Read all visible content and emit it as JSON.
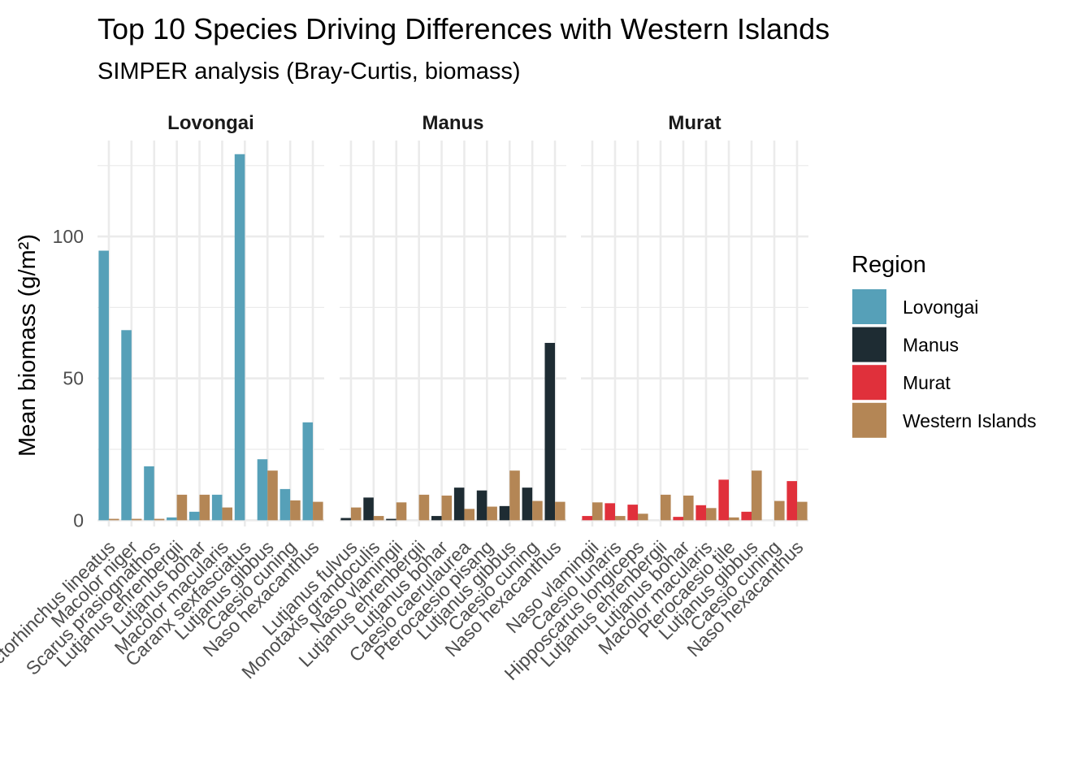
{
  "chart_data": {
    "type": "bar",
    "title": "Top 10 Species Driving Differences with Western Islands",
    "subtitle": "SIMPER analysis (Bray-Curtis, biomass)",
    "ylabel": "Mean biomass (g/m²)",
    "xlabel": "",
    "ylim": [
      0,
      130
    ],
    "yticks": [
      0,
      50,
      100
    ],
    "grid": true,
    "legend": {
      "title": "Region",
      "position": "right",
      "entries": [
        {
          "name": "Lovongai",
          "color": "#56A0B8"
        },
        {
          "name": "Manus",
          "color": "#1E2C33"
        },
        {
          "name": "Murat",
          "color": "#E0303B"
        },
        {
          "name": "Western Islands",
          "color": "#B48655"
        }
      ]
    },
    "facets": [
      {
        "label": "Lovongai",
        "categories": [
          "Plectorhinchus lineatus",
          "Macolor niger",
          "Scarus prasiognathos",
          "Lutjanus ehrenbergii",
          "Lutjanus bohar",
          "Macolor macularis",
          "Caranx sexfasciatus",
          "Lutjanus gibbus",
          "Caesio cuning",
          "Naso hexacanthus"
        ],
        "category_labels": [
          "Plectorhinchus lineatus",
          "Macolor niger",
          "Scarus prasiognathos",
          "Lutjanus ehrenbergii",
          "Lutjanus bohar",
          "Macolor macularis",
          "Caranx sexfasciatus",
          "Lutjanus gibbus",
          "Caesio cuning",
          "Naso hexacanthus"
        ],
        "series": [
          {
            "name": "Lovongai",
            "values": [
              95,
              67,
              19,
              1,
              3,
              9,
              129,
              21.5,
              11,
              34.5
            ]
          },
          {
            "name": "Western Islands",
            "values": [
              0.5,
              0.5,
              0.5,
              9,
              9,
              4.5,
              0,
              17.5,
              7,
              6.5
            ]
          }
        ]
      },
      {
        "label": "Manus",
        "categories": [
          "Lutjanus fulvus",
          "Monotaxis grandoculis",
          "Naso vlamingii",
          "Lutjanus ehrenbergii",
          "Lutjanus bohar",
          "Caesio caerulaurea",
          "Pterocaesio pisang",
          "Lutjanus gibbus",
          "Caesio cuning",
          "Naso hexacanthus"
        ],
        "series": [
          {
            "name": "Manus",
            "values": [
              0.8,
              8,
              0.5,
              0,
              1.5,
              11.5,
              10.5,
              5,
              11.5,
              62.5
            ]
          },
          {
            "name": "Western Islands",
            "values": [
              4.5,
              1.5,
              6.3,
              9,
              8.7,
              4,
              4.8,
              17.5,
              6.8,
              6.5
            ]
          }
        ]
      },
      {
        "label": "Murat",
        "categories": [
          "Naso vlamingii",
          "Caesio lunaris",
          "Hipposcarus longiceps",
          "Lutjanus ehrenbergii",
          "Lutjanus bohar",
          "Macolor macularis",
          "Pterocaesio tile",
          "Lutjanus gibbus",
          "Caesio cuning",
          "Naso hexacanthus"
        ],
        "series": [
          {
            "name": "Murat",
            "values": [
              1.5,
              6,
              5.5,
              0,
              1.2,
              5.3,
              14.3,
              3,
              0,
              13.8
            ]
          },
          {
            "name": "Western Islands",
            "values": [
              6.3,
              1.5,
              2.3,
              9,
              8.7,
              4.3,
              1,
              17.5,
              6.8,
              6.5
            ]
          }
        ]
      }
    ]
  }
}
